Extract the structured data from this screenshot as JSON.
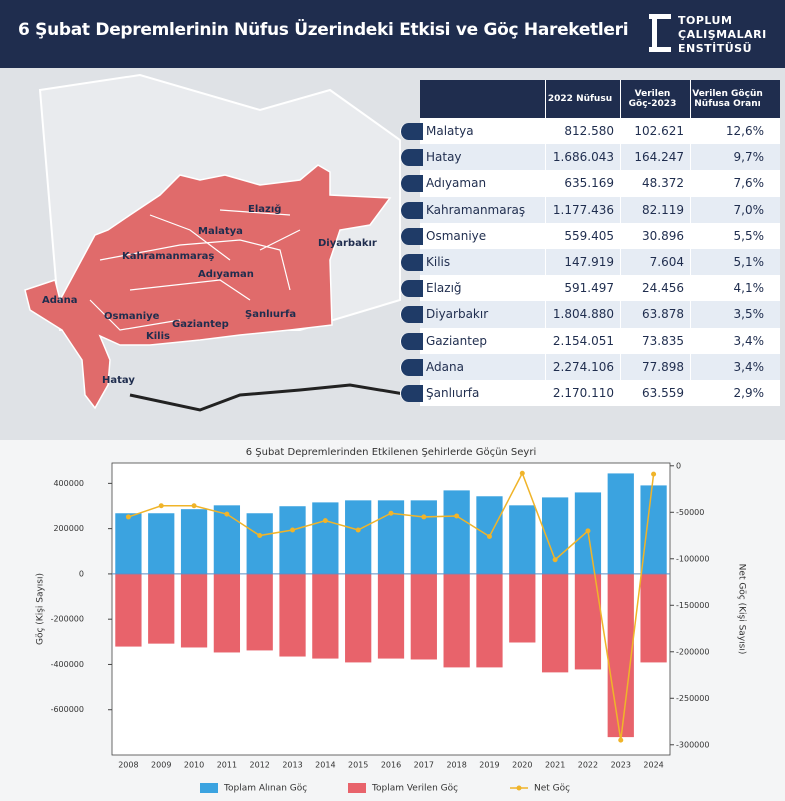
{
  "header": {
    "title": "6 Şubat Depremlerinin Nüfus Üzerindeki Etkisi ve Göç Hareketleri",
    "logo": [
      "TOPLUM",
      "ÇALIŞMALARI",
      "ENSTİTÜSÜ"
    ]
  },
  "map": {
    "labels": [
      "Elazığ",
      "Malatya",
      "Diyarbakır",
      "Kahramanmaraş",
      "Adıyaman",
      "Adana",
      "Osmaniye",
      "Gaziantep",
      "Şanlıurfa",
      "Kilis",
      "Hatay"
    ]
  },
  "table": {
    "columns": [
      "2022 Nüfusu",
      "Verilen Göç-2023",
      "Verilen Göçün Nüfusa Oranı"
    ],
    "rows": [
      [
        "Malatya",
        "812.580",
        "102.621",
        "12,6%"
      ],
      [
        "Hatay",
        "1.686.043",
        "164.247",
        "9,7%"
      ],
      [
        "Adıyaman",
        "635.169",
        "48.372",
        "7,6%"
      ],
      [
        "Kahramanmaraş",
        "1.177.436",
        "82.119",
        "7,0%"
      ],
      [
        "Osmaniye",
        "559.405",
        "30.896",
        "5,5%"
      ],
      [
        "Kilis",
        "147.919",
        "7.604",
        "5,1%"
      ],
      [
        "Elazığ",
        "591.497",
        "24.456",
        "4,1%"
      ],
      [
        "Diyarbakır",
        "1.804.880",
        "63.878",
        "3,5%"
      ],
      [
        "Gaziantep",
        "2.154.051",
        "73.835",
        "3,4%"
      ],
      [
        "Adana",
        "2.274.106",
        "77.898",
        "3,4%"
      ],
      [
        "Şanlıurfa",
        "2.170.110",
        "63.559",
        "2,9%"
      ]
    ]
  },
  "chart_data": {
    "type": "combo",
    "title": "6 Şubat Depremlerinden Etkilenen Şehirlerde Göçün Seyri",
    "y_label": "Göç (Kişi Sayısı)",
    "y2_label": "Net Göç (Kişi Sayısı)",
    "categories": [
      "2008",
      "2009",
      "2010",
      "2011",
      "2012",
      "2013",
      "2014",
      "2015",
      "2016",
      "2017",
      "2018",
      "2019",
      "2020",
      "2021",
      "2022",
      "2023",
      "2024"
    ],
    "series": [
      {
        "name": "Toplam Alınan Göç",
        "type": "bar",
        "color": "#3ba3e0",
        "values": [
          268000,
          268000,
          286000,
          303000,
          268000,
          299000,
          316000,
          325000,
          325000,
          325000,
          369000,
          343000,
          303000,
          338000,
          360000,
          444000,
          391000
        ]
      },
      {
        "name": "Toplam Verilen Göç",
        "type": "bar",
        "color": "#e8636b",
        "values": [
          -321000,
          -308000,
          -325000,
          -347000,
          -338000,
          -365000,
          -374000,
          -391000,
          -374000,
          -378000,
          -413000,
          -413000,
          -303000,
          -435000,
          -422000,
          -721000,
          -391000
        ]
      },
      {
        "name": "Net Göç",
        "type": "line",
        "axis": "y2",
        "color": "#f0b429",
        "values": [
          -55000,
          -43000,
          -43000,
          -52000,
          -75000,
          -69000,
          -59000,
          -69000,
          -51000,
          -55000,
          -54000,
          -76000,
          -8000,
          -101000,
          -70000,
          -295000,
          -9000
        ]
      }
    ],
    "ylim": [
      -800000,
      490000
    ],
    "yticks": [
      -600000,
      -400000,
      -200000,
      0,
      200000,
      400000
    ],
    "y2lim": [
      -311000,
      3000
    ],
    "y2ticks": [
      -300000,
      -250000,
      -200000,
      -150000,
      -100000,
      -50000,
      0
    ],
    "legend": "bottom"
  }
}
